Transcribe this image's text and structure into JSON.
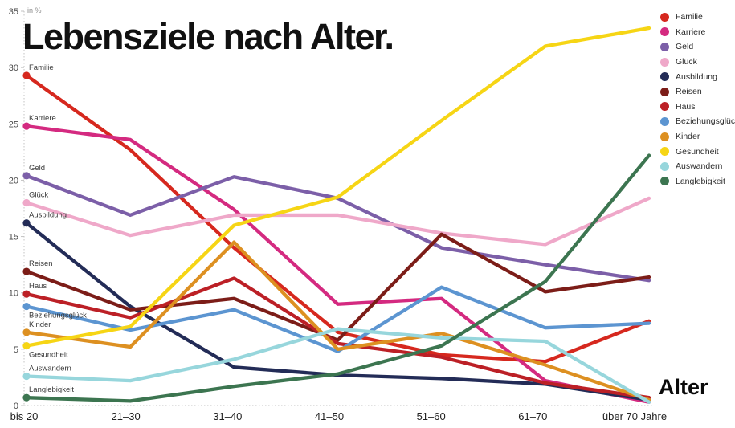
{
  "title": "Lebensziele nach Alter.",
  "unit_label": "in %",
  "x_axis_title": "Alter",
  "chart_data": {
    "type": "line",
    "categories": [
      "bis 20",
      "21–30",
      "31–40",
      "41–50",
      "51–60",
      "61–70",
      "über 70 Jahre"
    ],
    "xlabel": "Alter",
    "ylabel": "in %",
    "ylim": [
      0,
      35
    ],
    "yticks": [
      0,
      5,
      10,
      15,
      20,
      25,
      30,
      35
    ],
    "grid": false,
    "legend_position": "right",
    "series": [
      {
        "name": "Familie",
        "id": "familie",
        "color": "#d6281e",
        "label_below": false,
        "values": [
          29.3,
          22.7,
          14.0,
          6.5,
          4.5,
          3.9,
          7.5
        ]
      },
      {
        "name": "Karriere",
        "id": "karriere",
        "color": "#d42a80",
        "label_below": false,
        "values": [
          24.8,
          23.6,
          17.4,
          9.0,
          9.5,
          2.2,
          0.3
        ]
      },
      {
        "name": "Geld",
        "id": "geld",
        "color": "#7c5fa8",
        "label_below": false,
        "values": [
          20.4,
          16.9,
          20.3,
          18.4,
          14.0,
          12.5,
          11.1
        ]
      },
      {
        "name": "Glück",
        "id": "glueck",
        "color": "#efa8c9",
        "label_below": false,
        "values": [
          18.0,
          15.1,
          16.9,
          16.9,
          15.3,
          14.3,
          18.4
        ]
      },
      {
        "name": "Ausbildung",
        "id": "ausbildung",
        "color": "#232c57",
        "label_below": false,
        "values": [
          16.2,
          8.8,
          3.4,
          2.7,
          2.4,
          1.9,
          0.5
        ]
      },
      {
        "name": "Reisen",
        "id": "reisen",
        "color": "#7c1d18",
        "label_below": false,
        "values": [
          11.9,
          8.5,
          9.5,
          5.8,
          15.2,
          10.1,
          11.4
        ]
      },
      {
        "name": "Haus",
        "id": "haus",
        "color": "#bc2026",
        "label_below": false,
        "values": [
          9.9,
          7.8,
          11.3,
          5.5,
          4.3,
          2.0,
          0.7
        ]
      },
      {
        "name": "Beziehungsglück",
        "id": "beziehungsglueck",
        "color": "#5c95d1",
        "label_below": true,
        "values": [
          8.8,
          6.7,
          8.5,
          4.8,
          10.5,
          6.9,
          7.3
        ]
      },
      {
        "name": "Kinder",
        "id": "kinder",
        "color": "#dd9021",
        "label_below": false,
        "values": [
          6.5,
          5.2,
          14.5,
          5.0,
          6.4,
          3.6,
          0.5
        ]
      },
      {
        "name": "Gesundheit",
        "id": "gesundheit",
        "color": "#f6d515",
        "label_below": true,
        "values": [
          5.3,
          7.0,
          16.0,
          18.5,
          25.3,
          31.9,
          33.5
        ]
      },
      {
        "name": "Auswandern",
        "id": "auswandern",
        "color": "#97d6dc",
        "label_below": false,
        "values": [
          2.6,
          2.2,
          4.1,
          6.8,
          6.0,
          5.7,
          0.3
        ]
      },
      {
        "name": "Langlebigkeit",
        "id": "langlebigkeit",
        "color": "#3c7550",
        "label_below": false,
        "values": [
          0.7,
          0.4,
          1.7,
          2.8,
          5.3,
          11.0,
          22.2
        ]
      }
    ]
  }
}
